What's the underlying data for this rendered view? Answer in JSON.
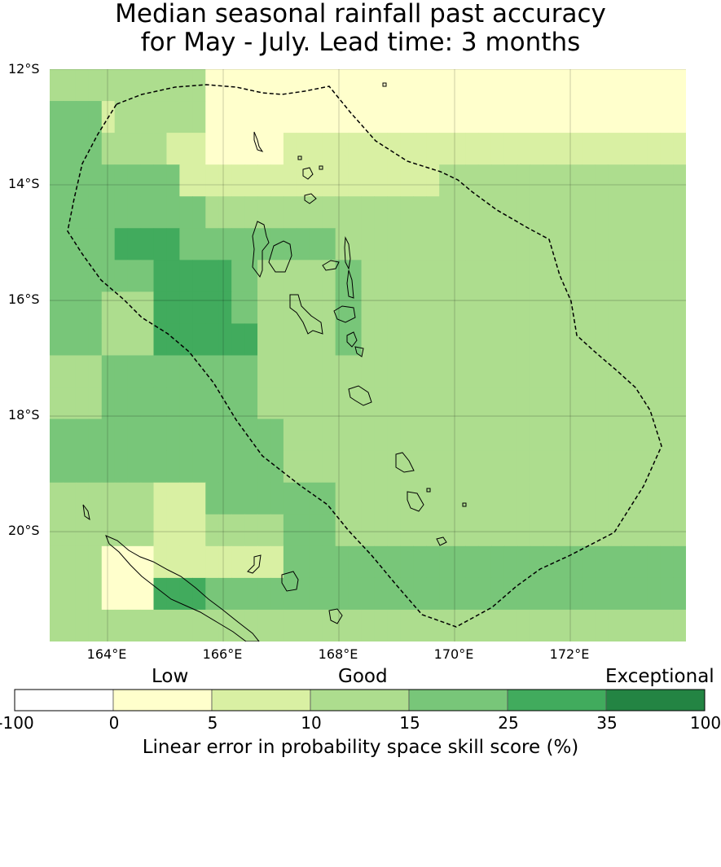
{
  "title_line1": "Median seasonal rainfall past accuracy",
  "title_line2": "for May - July. Lead time: 3 months",
  "map": {
    "lon_range": [
      163.0,
      174.0
    ],
    "lat_range": [
      -21.9,
      -12.0
    ],
    "lat_ticks": [
      {
        "value": -12,
        "label": "12°S"
      },
      {
        "value": -14,
        "label": "14°S"
      },
      {
        "value": -16,
        "label": "16°S"
      },
      {
        "value": -18,
        "label": "18°S"
      },
      {
        "value": -20,
        "label": "20°S"
      }
    ],
    "lon_ticks": [
      {
        "value": 164,
        "label": "164°E"
      },
      {
        "value": 166,
        "label": "166°E"
      },
      {
        "value": 168,
        "label": "168°E"
      },
      {
        "value": 170,
        "label": "170°E"
      },
      {
        "value": 172,
        "label": "172°E"
      }
    ],
    "gridlines": true,
    "eez_boundary": "dashed",
    "cell_size_deg": [
      0.84,
      0.56
    ]
  },
  "legend": {
    "categories": [
      {
        "label": "Low"
      },
      {
        "label": "Good"
      },
      {
        "label": "Exceptional"
      }
    ],
    "bins": [
      {
        "from": -100,
        "to": 0,
        "color": "#ffffff"
      },
      {
        "from": 0,
        "to": 5,
        "color": "#ffffcc"
      },
      {
        "from": 5,
        "to": 10,
        "color": "#d9f0a3"
      },
      {
        "from": 10,
        "to": 15,
        "color": "#addd8e"
      },
      {
        "from": 15,
        "to": 25,
        "color": "#78c679"
      },
      {
        "from": 25,
        "to": 35,
        "color": "#41ab5d"
      },
      {
        "from": 35,
        "to": 100,
        "color": "#238443"
      }
    ],
    "tick_labels": [
      "-100",
      "0",
      "5",
      "10",
      "15",
      "25",
      "35",
      "100"
    ],
    "title": "Linear error in probability space skill score (%)"
  },
  "chart_data": {
    "type": "heatmap",
    "title": "Median seasonal rainfall past accuracy for May - July. Lead time: 3 months",
    "colorbar_label": "Linear error in probability space skill score (%)",
    "grid_levels": [
      [
        3,
        3,
        3,
        3,
        3,
        3,
        3,
        3,
        3,
        3,
        3,
        3,
        1,
        1,
        1,
        1,
        1,
        1,
        1,
        1,
        1,
        1,
        1,
        1,
        1,
        1,
        1,
        1,
        1,
        1,
        1,
        1,
        1,
        1,
        1,
        1,
        1,
        1,
        1,
        1,
        1,
        1,
        1,
        1,
        1,
        1,
        1,
        1,
        1
      ],
      [
        4,
        4,
        4,
        4,
        2,
        3,
        3,
        3,
        3,
        3,
        3,
        3,
        1,
        1,
        1,
        1,
        1,
        1,
        1,
        1,
        1,
        1,
        1,
        1,
        1,
        1,
        1,
        1,
        1,
        1,
        1,
        1,
        1,
        1,
        1,
        1,
        1,
        1,
        1,
        1,
        1,
        1,
        1,
        1,
        1,
        1,
        1,
        1,
        1
      ],
      [
        4,
        4,
        4,
        4,
        3,
        3,
        3,
        3,
        3,
        2,
        2,
        2,
        1,
        1,
        1,
        1,
        1,
        1,
        2,
        2,
        2,
        2,
        2,
        2,
        2,
        2,
        2,
        2,
        2,
        2,
        2,
        2,
        2,
        2,
        2,
        2,
        2,
        2,
        2,
        2,
        2,
        2,
        2,
        2,
        2,
        2,
        2,
        2,
        2
      ],
      [
        4,
        4,
        4,
        4,
        4,
        4,
        4,
        4,
        4,
        4,
        2,
        2,
        2,
        2,
        2,
        2,
        2,
        2,
        2,
        2,
        2,
        2,
        2,
        2,
        2,
        2,
        2,
        2,
        2,
        2,
        3,
        3,
        3,
        3,
        3,
        3,
        3,
        3,
        3,
        3,
        3,
        3,
        3,
        3,
        3,
        3,
        3,
        3,
        3
      ],
      [
        4,
        4,
        4,
        4,
        4,
        4,
        4,
        4,
        4,
        4,
        4,
        4,
        3,
        3,
        3,
        3,
        3,
        3,
        3,
        3,
        3,
        3,
        3,
        3,
        3,
        3,
        3,
        3,
        3,
        3,
        3,
        3,
        3,
        3,
        3,
        3,
        3,
        3,
        3,
        3,
        3,
        3,
        3,
        3,
        3,
        3,
        3,
        3,
        3
      ],
      [
        4,
        4,
        4,
        4,
        4,
        5,
        5,
        5,
        5,
        5,
        4,
        4,
        4,
        4,
        4,
        4,
        4,
        4,
        4,
        4,
        4,
        4,
        3,
        3,
        3,
        3,
        3,
        3,
        3,
        3,
        3,
        3,
        3,
        3,
        3,
        3,
        3,
        3,
        3,
        3,
        3,
        3,
        3,
        3,
        3,
        3,
        3,
        3,
        3
      ],
      [
        4,
        4,
        4,
        4,
        4,
        4,
        4,
        4,
        5,
        5,
        5,
        5,
        5,
        5,
        4,
        4,
        3,
        3,
        3,
        3,
        3,
        3,
        4,
        4,
        3,
        3,
        3,
        3,
        3,
        3,
        3,
        3,
        3,
        3,
        3,
        3,
        3,
        3,
        3,
        3,
        3,
        3,
        3,
        3,
        3,
        3,
        3,
        3,
        3
      ],
      [
        4,
        4,
        4,
        4,
        3,
        3,
        3,
        3,
        5,
        5,
        5,
        5,
        5,
        5,
        4,
        4,
        3,
        3,
        3,
        3,
        3,
        3,
        4,
        4,
        3,
        3,
        3,
        3,
        3,
        3,
        3,
        3,
        3,
        3,
        3,
        3,
        3,
        3,
        3,
        3,
        3,
        3,
        3,
        3,
        3,
        3,
        3,
        3,
        3
      ],
      [
        4,
        4,
        4,
        4,
        3,
        3,
        3,
        3,
        5,
        5,
        5,
        5,
        5,
        5,
        5,
        5,
        3,
        3,
        3,
        3,
        3,
        3,
        4,
        4,
        3,
        3,
        3,
        3,
        3,
        3,
        3,
        3,
        3,
        3,
        3,
        3,
        3,
        3,
        3,
        3,
        3,
        3,
        3,
        3,
        3,
        3,
        3,
        3,
        3
      ],
      [
        3,
        3,
        3,
        3,
        4,
        4,
        4,
        4,
        4,
        4,
        4,
        4,
        4,
        4,
        4,
        4,
        3,
        3,
        3,
        3,
        3,
        3,
        3,
        3,
        3,
        3,
        3,
        3,
        3,
        3,
        3,
        3,
        3,
        3,
        3,
        3,
        3,
        3,
        3,
        3,
        3,
        3,
        3,
        3,
        3,
        3,
        3,
        3,
        3
      ],
      [
        3,
        3,
        3,
        3,
        4,
        4,
        4,
        4,
        4,
        4,
        4,
        4,
        4,
        4,
        4,
        4,
        3,
        3,
        3,
        3,
        3,
        3,
        3,
        3,
        3,
        3,
        3,
        3,
        3,
        3,
        3,
        3,
        3,
        3,
        3,
        3,
        3,
        3,
        3,
        3,
        3,
        3,
        3,
        3,
        3,
        3,
        3,
        3,
        3
      ],
      [
        4,
        4,
        4,
        4,
        4,
        4,
        4,
        4,
        4,
        4,
        4,
        4,
        4,
        4,
        4,
        4,
        4,
        4,
        3,
        3,
        3,
        3,
        3,
        3,
        3,
        3,
        3,
        3,
        3,
        3,
        3,
        3,
        3,
        3,
        3,
        3,
        3,
        3,
        3,
        3,
        3,
        3,
        3,
        3,
        3,
        3,
        3,
        3,
        3
      ],
      [
        4,
        4,
        4,
        4,
        4,
        4,
        4,
        4,
        4,
        4,
        4,
        4,
        4,
        4,
        4,
        4,
        4,
        4,
        3,
        3,
        3,
        3,
        3,
        3,
        3,
        3,
        3,
        3,
        3,
        3,
        3,
        3,
        3,
        3,
        3,
        3,
        3,
        3,
        3,
        3,
        3,
        3,
        3,
        3,
        3,
        3,
        3,
        3,
        3
      ],
      [
        3,
        3,
        3,
        3,
        3,
        3,
        3,
        3,
        2,
        2,
        2,
        2,
        4,
        4,
        4,
        4,
        4,
        4,
        4,
        4,
        4,
        4,
        3,
        3,
        3,
        3,
        3,
        3,
        3,
        3,
        3,
        3,
        3,
        3,
        3,
        3,
        3,
        3,
        3,
        3,
        3,
        3,
        3,
        3,
        3,
        3,
        3,
        3,
        3
      ],
      [
        3,
        3,
        3,
        3,
        3,
        3,
        3,
        3,
        2,
        2,
        2,
        2,
        3,
        3,
        3,
        3,
        3,
        3,
        4,
        4,
        4,
        4,
        3,
        3,
        3,
        3,
        3,
        3,
        3,
        3,
        3,
        3,
        3,
        3,
        3,
        3,
        3,
        3,
        3,
        3,
        3,
        3,
        3,
        3,
        3,
        3,
        3,
        3,
        3
      ],
      [
        3,
        3,
        3,
        3,
        1,
        1,
        1,
        1,
        2,
        2,
        2,
        2,
        2,
        2,
        2,
        2,
        2,
        2,
        4,
        4,
        4,
        4,
        4,
        4,
        4,
        4,
        4,
        4,
        4,
        4,
        4,
        4,
        4,
        4,
        4,
        4,
        4,
        4,
        4,
        4,
        4,
        4,
        4,
        4,
        4,
        4,
        4,
        4,
        4
      ],
      [
        3,
        3,
        3,
        3,
        1,
        1,
        1,
        1,
        5,
        5,
        5,
        5,
        4,
        4,
        4,
        4,
        4,
        4,
        4,
        4,
        4,
        4,
        4,
        4,
        4,
        4,
        4,
        4,
        4,
        4,
        4,
        4,
        4,
        4,
        4,
        4,
        4,
        4,
        4,
        4,
        4,
        4,
        4,
        4,
        4,
        4,
        4,
        4,
        4
      ],
      [
        3,
        3,
        3,
        3,
        3,
        3,
        3,
        3,
        3,
        3,
        3,
        3,
        3,
        3,
        3,
        3,
        3,
        3,
        3,
        3,
        3,
        3,
        3,
        3,
        3,
        3,
        3,
        3,
        3,
        3,
        3,
        3,
        3,
        3,
        3,
        3,
        3,
        3,
        3,
        3,
        3,
        3,
        3,
        3,
        3,
        3,
        3,
        3,
        3
      ]
    ]
  }
}
